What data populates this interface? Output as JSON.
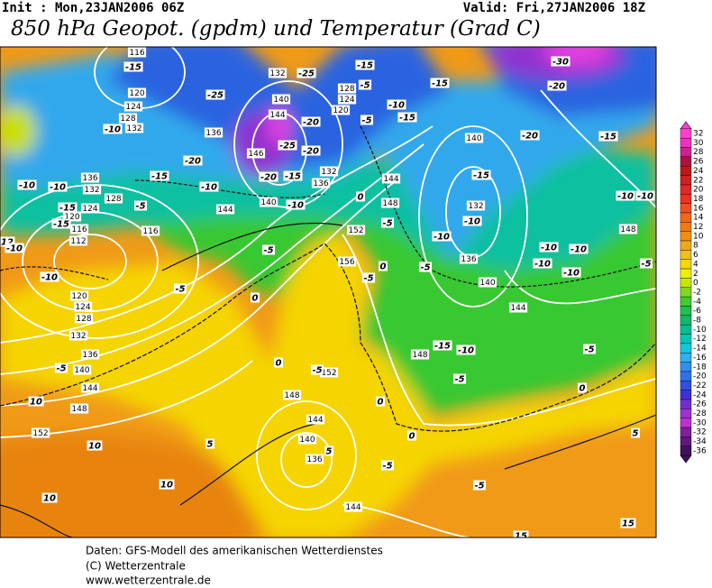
{
  "header": {
    "init": "Init : Mon,23JAN2006 06Z",
    "valid": "Valid: Fri,27JAN2006 18Z",
    "title": "850 hPa Geopot. (gpdm) und Temperatur (Grad C)"
  },
  "legend": {
    "ticks": [
      32,
      30,
      28,
      26,
      24,
      22,
      20,
      18,
      16,
      14,
      12,
      10,
      8,
      6,
      4,
      2,
      0,
      -2,
      -4,
      -6,
      -8,
      -10,
      -12,
      -14,
      -16,
      -18,
      -20,
      -22,
      -24,
      -26,
      -28,
      -30,
      -32,
      -34,
      -36
    ],
    "colors": [
      "#ff40d0",
      "#f030c0",
      "#d02090",
      "#b01040",
      "#c01818",
      "#d02020",
      "#e02828",
      "#f03020",
      "#f05020",
      "#f06818",
      "#f07c10",
      "#f09010",
      "#f0a818",
      "#f0c020",
      "#f5d800",
      "#f0f000",
      "#c8e800",
      "#80d820",
      "#40cc30",
      "#20c050",
      "#10b868",
      "#00c090",
      "#00c8b8",
      "#10c8e0",
      "#30b0f0",
      "#3090f0",
      "#3070e8",
      "#3050e0",
      "#4030d8",
      "#7030d0",
      "#a030d0",
      "#c030d0",
      "#8020a0",
      "#601880",
      "#401060"
    ]
  },
  "geopotential_labels": [
    116,
    120,
    124,
    128,
    132,
    136,
    132,
    140,
    144,
    128,
    124,
    120,
    146,
    132,
    136,
    144,
    140,
    136,
    132,
    128,
    124,
    120,
    116,
    112,
    116,
    120,
    124,
    128,
    132,
    136,
    140,
    144,
    148,
    152,
    152,
    156,
    148,
    144,
    140,
    132,
    136,
    140,
    144,
    148,
    148,
    152,
    148,
    144,
    140,
    136,
    144
  ],
  "temperature_labels": [
    -15,
    -25,
    -25,
    -20,
    -25,
    -20,
    -20,
    -15,
    -20,
    -15,
    -10,
    -10,
    -10,
    -10,
    -15,
    -5,
    -15,
    -5,
    -15,
    -5,
    -10,
    -5,
    -15,
    -15,
    -20,
    -30,
    -20,
    -15,
    -15,
    -10,
    -10,
    -10,
    -10,
    -10,
    -10,
    -10,
    -10,
    -5,
    -5,
    -5,
    0,
    0,
    -5,
    -10,
    -5,
    0,
    0,
    -5,
    -15,
    -10,
    -5,
    -5,
    0,
    0,
    0,
    -5,
    -5,
    5,
    5,
    10,
    10,
    10,
    10,
    15,
    15,
    -5,
    12,
    -10,
    -10,
    5
  ],
  "footer": {
    "source": "Daten: GFS-Modell des amerikanischen Wetterdienstes",
    "copyright": "(C) Wetterzentrale",
    "url": "www.wetterzentrale.de"
  }
}
